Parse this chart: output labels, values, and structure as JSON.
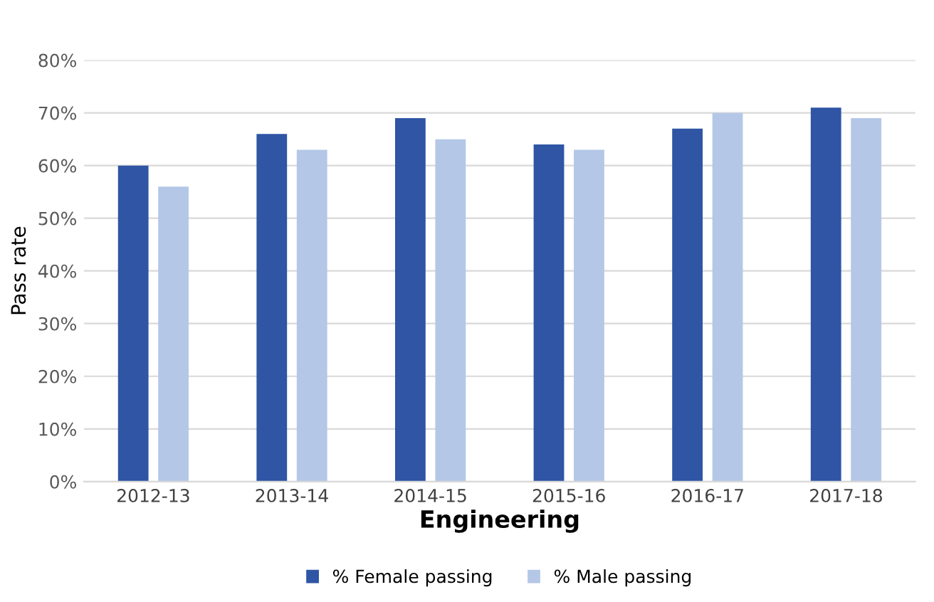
{
  "chart_data": {
    "type": "bar",
    "xlabel": "Engineering",
    "ylabel": "Pass rate",
    "categories": [
      "2012-13",
      "2013-14",
      "2014-15",
      "2015-16",
      "2016-17",
      "2017-18"
    ],
    "series": [
      {
        "name": "% Female passing",
        "color": "#2f55a4",
        "values": [
          60,
          66,
          69,
          64,
          67,
          71
        ]
      },
      {
        "name": "% Male passing",
        "color": "#b4c7e7",
        "values": [
          56,
          63,
          65,
          63,
          70,
          69
        ]
      }
    ],
    "ylim": [
      0,
      80
    ],
    "yticks": [
      {
        "value": 0,
        "label": "0%"
      },
      {
        "value": 10,
        "label": "10%"
      },
      {
        "value": 20,
        "label": "20%"
      },
      {
        "value": 30,
        "label": "30%"
      },
      {
        "value": 40,
        "label": "40%"
      },
      {
        "value": 50,
        "label": "50%"
      },
      {
        "value": 60,
        "label": "60%"
      },
      {
        "value": 70,
        "label": "70%"
      },
      {
        "value": 80,
        "label": "80%"
      }
    ],
    "grid": "y",
    "legend": "bottom"
  }
}
